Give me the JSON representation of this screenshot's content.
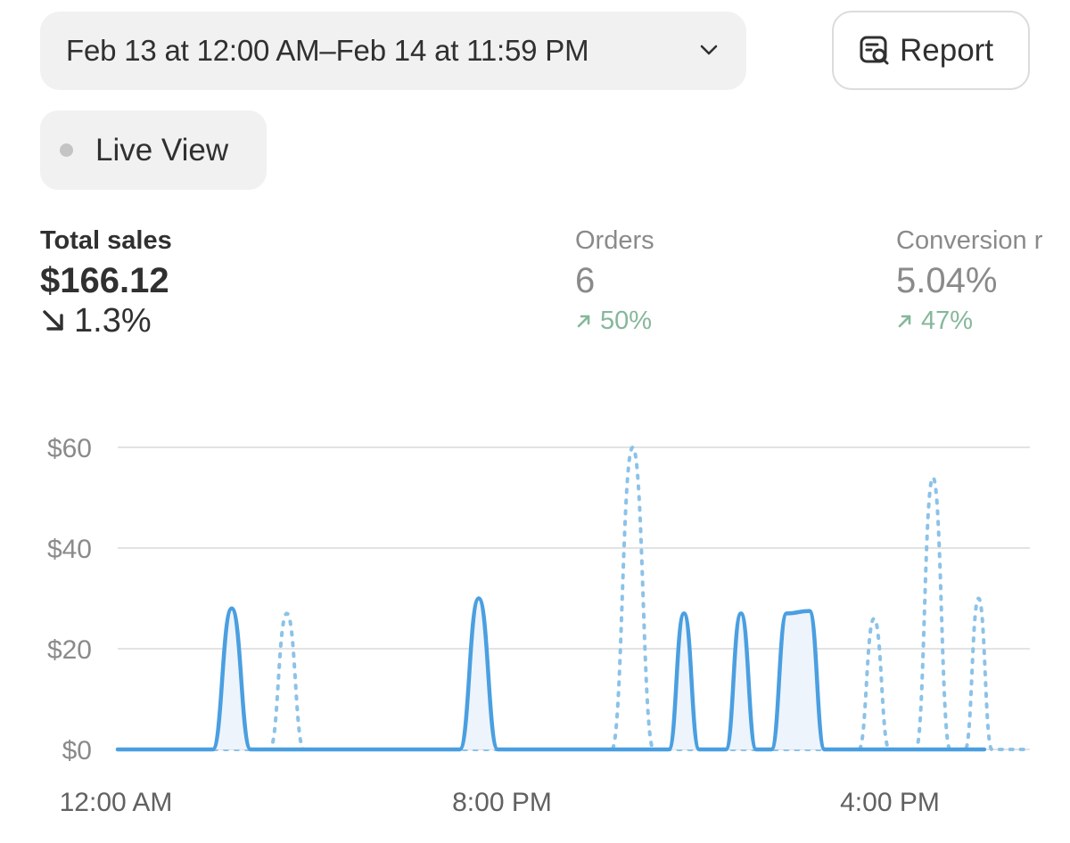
{
  "header": {
    "date_range": "Feb 13 at 12:00 AM–Feb 14 at 11:59 PM",
    "report_label": "Report",
    "live_view_label": "Live View"
  },
  "metrics": {
    "total_sales": {
      "title": "Total sales",
      "value": "$166.12",
      "change": "1.3%",
      "direction": "down"
    },
    "orders": {
      "title": "Orders",
      "value": "6",
      "change": "50%",
      "direction": "up"
    },
    "conversion": {
      "title": "Conversion r",
      "value": "5.04%",
      "change": "47%",
      "direction": "up"
    }
  },
  "colors": {
    "series_current": "#4a9fe0",
    "series_previous": "#8cc2e8",
    "positive": "#86b79b",
    "gridline": "#e3e3e3"
  },
  "chart_data": {
    "type": "line",
    "x_ticks": [
      "12:00 AM",
      "8:00 PM",
      "4:00 PM"
    ],
    "y_ticks": [
      "$60",
      "$40",
      "$20",
      "$0"
    ],
    "ylim": [
      0,
      60
    ],
    "grid": true,
    "series": [
      {
        "style": "solid",
        "points": [
          [
            0,
            0
          ],
          [
            2.5,
            0
          ],
          [
            3.0,
            28
          ],
          [
            3.5,
            0
          ],
          [
            9,
            0
          ],
          [
            9.5,
            30
          ],
          [
            10,
            0
          ],
          [
            14.5,
            0
          ],
          [
            14.9,
            27
          ],
          [
            15.3,
            0
          ],
          [
            16,
            0
          ],
          [
            16.4,
            27
          ],
          [
            16.8,
            0
          ],
          [
            17.2,
            0
          ],
          [
            17.6,
            27
          ],
          [
            18.2,
            27.5
          ],
          [
            18.6,
            0
          ],
          [
            22.8,
            0
          ]
        ]
      },
      {
        "style": "dotted",
        "points": [
          [
            0,
            0
          ],
          [
            4,
            0
          ],
          [
            4.45,
            27
          ],
          [
            4.9,
            0
          ],
          [
            13,
            0
          ],
          [
            13.55,
            60
          ],
          [
            14.1,
            0
          ],
          [
            19.5,
            0
          ],
          [
            19.9,
            26
          ],
          [
            20.3,
            0
          ],
          [
            21,
            0
          ],
          [
            21.45,
            54
          ],
          [
            21.9,
            0
          ],
          [
            22.3,
            0
          ],
          [
            22.65,
            30
          ],
          [
            23,
            0
          ],
          [
            24,
            0
          ]
        ]
      }
    ]
  }
}
